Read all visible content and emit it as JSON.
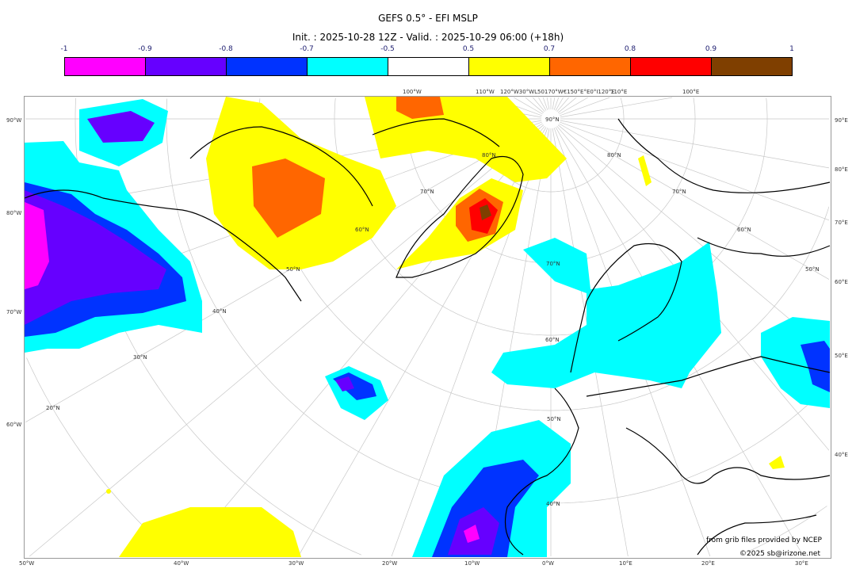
{
  "title": "GEFS 0.5° - EFI MSLP",
  "subtitle": "Init. : 2025-10-28 12Z - Valid. : 2025-10-29 06:00 (+18h)",
  "colorbar": {
    "ticks": [
      "-1",
      "-0.9",
      "-0.8",
      "-0.7",
      "-0.5",
      "0.5",
      "0.7",
      "0.8",
      "0.9",
      "1"
    ],
    "colors": [
      "#ff00ff",
      "#6600ff",
      "#0033ff",
      "#00ffff",
      "#ffffff",
      "#ffff00",
      "#ff6600",
      "#ff0000",
      "#7f3f00"
    ]
  },
  "axes": {
    "left": [
      "90°W",
      "80°W",
      "70°W",
      "60°W"
    ],
    "right": [
      "90°E",
      "80°E",
      "70°E",
      "60°E",
      "50°E",
      "40°E"
    ],
    "bottom": [
      "50°W",
      "40°W",
      "30°W",
      "20°W",
      "10°W",
      "0°W",
      "10°E",
      "20°E",
      "30°E"
    ],
    "top": [
      "100°W",
      "110°W",
      "120°W30°WL50170°W€150°E°E0°I120°E",
      "110°E",
      "100°E"
    ],
    "lat_labels": [
      "20°N",
      "30°N",
      "40°N",
      "50°N",
      "60°N",
      "70°N",
      "80°N",
      "90°N",
      "80°N",
      "70°N",
      "60°N",
      "50°N",
      "70°N",
      "60°N",
      "50°N",
      "40°N"
    ]
  },
  "credits": {
    "line1": "from grib files provided by NCEP",
    "line2": "©2025 sb@irizone.net"
  }
}
